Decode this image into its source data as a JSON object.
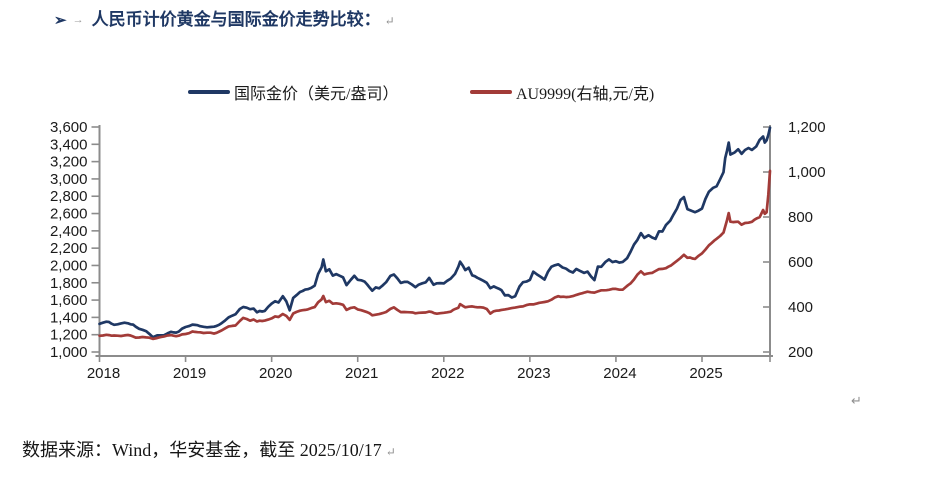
{
  "page": {
    "title_bullet": "➢",
    "tab_mark": "→",
    "title": "人民币计价黄金与国际金价走势比较：",
    "paragraph_mark": "↵",
    "footer": "数据来源：Wind，华安基金，截至 2025/10/17"
  },
  "colors": {
    "navy": "#1F3864",
    "dark_red": "#A23B38",
    "axis_gray": "#8C8C8C",
    "tick_text": "#1b1b1b"
  },
  "chart_data": {
    "type": "line",
    "title": "人民币计价黄金与国际金价走势比较",
    "legend_position": "top",
    "grid": false,
    "x_axis": {
      "tick_labels": [
        "2018",
        "2019",
        "2020",
        "2021",
        "2022",
        "2023",
        "2024",
        "2025"
      ],
      "start": 2018,
      "end": 2025.79
    },
    "left_axis": {
      "min": 1000,
      "max": 3600,
      "step": 200,
      "applies_to": "国际金价（美元/盎司）"
    },
    "right_axis": {
      "min": 200,
      "max": 1200,
      "step": 200,
      "applies_to": "AU9999(右轴,元/克)"
    },
    "series": [
      {
        "name": "国际金价（美元/盎司）",
        "axis": "left",
        "color": "#1F3864",
        "points": [
          [
            2018.0,
            1318
          ],
          [
            2018.08,
            1342
          ],
          [
            2018.17,
            1326
          ],
          [
            2018.25,
            1332
          ],
          [
            2018.33,
            1340
          ],
          [
            2018.42,
            1298
          ],
          [
            2018.5,
            1252
          ],
          [
            2018.58,
            1212
          ],
          [
            2018.62,
            1178
          ],
          [
            2018.67,
            1196
          ],
          [
            2018.75,
            1203
          ],
          [
            2018.83,
            1222
          ],
          [
            2018.92,
            1233
          ],
          [
            2019.0,
            1284
          ],
          [
            2019.08,
            1322
          ],
          [
            2019.17,
            1300
          ],
          [
            2019.25,
            1288
          ],
          [
            2019.33,
            1282
          ],
          [
            2019.42,
            1330
          ],
          [
            2019.5,
            1412
          ],
          [
            2019.58,
            1428
          ],
          [
            2019.63,
            1500
          ],
          [
            2019.67,
            1528
          ],
          [
            2019.75,
            1488
          ],
          [
            2019.79,
            1508
          ],
          [
            2019.83,
            1462
          ],
          [
            2019.92,
            1478
          ],
          [
            2020.0,
            1552
          ],
          [
            2020.04,
            1582
          ],
          [
            2020.08,
            1570
          ],
          [
            2020.13,
            1645
          ],
          [
            2020.17,
            1590
          ],
          [
            2020.21,
            1480
          ],
          [
            2020.25,
            1625
          ],
          [
            2020.33,
            1700
          ],
          [
            2020.42,
            1728
          ],
          [
            2020.5,
            1775
          ],
          [
            2020.54,
            1905
          ],
          [
            2020.58,
            1975
          ],
          [
            2020.6,
            2065
          ],
          [
            2020.63,
            1935
          ],
          [
            2020.67,
            1955
          ],
          [
            2020.71,
            1885
          ],
          [
            2020.75,
            1900
          ],
          [
            2020.83,
            1863
          ],
          [
            2020.87,
            1778
          ],
          [
            2020.92,
            1843
          ],
          [
            2020.96,
            1893
          ],
          [
            2021.0,
            1848
          ],
          [
            2021.08,
            1808
          ],
          [
            2021.17,
            1712
          ],
          [
            2021.21,
            1742
          ],
          [
            2021.25,
            1732
          ],
          [
            2021.33,
            1792
          ],
          [
            2021.38,
            1872
          ],
          [
            2021.42,
            1898
          ],
          [
            2021.46,
            1858
          ],
          [
            2021.5,
            1802
          ],
          [
            2021.54,
            1812
          ],
          [
            2021.58,
            1816
          ],
          [
            2021.63,
            1788
          ],
          [
            2021.67,
            1752
          ],
          [
            2021.71,
            1772
          ],
          [
            2021.75,
            1782
          ],
          [
            2021.79,
            1802
          ],
          [
            2021.83,
            1863
          ],
          [
            2021.88,
            1782
          ],
          [
            2021.92,
            1792
          ],
          [
            2022.0,
            1800
          ],
          [
            2022.08,
            1856
          ],
          [
            2022.13,
            1910
          ],
          [
            2022.17,
            1988
          ],
          [
            2022.19,
            2042
          ],
          [
            2022.25,
            1942
          ],
          [
            2022.29,
            1978
          ],
          [
            2022.33,
            1892
          ],
          [
            2022.42,
            1842
          ],
          [
            2022.5,
            1806
          ],
          [
            2022.54,
            1736
          ],
          [
            2022.58,
            1766
          ],
          [
            2022.67,
            1722
          ],
          [
            2022.71,
            1662
          ],
          [
            2022.75,
            1666
          ],
          [
            2022.79,
            1632
          ],
          [
            2022.83,
            1646
          ],
          [
            2022.88,
            1752
          ],
          [
            2022.92,
            1796
          ],
          [
            2023.0,
            1832
          ],
          [
            2023.04,
            1922
          ],
          [
            2023.08,
            1902
          ],
          [
            2023.13,
            1866
          ],
          [
            2023.17,
            1832
          ],
          [
            2023.21,
            1922
          ],
          [
            2023.25,
            1982
          ],
          [
            2023.29,
            2002
          ],
          [
            2023.33,
            2016
          ],
          [
            2023.38,
            1976
          ],
          [
            2023.42,
            1962
          ],
          [
            2023.46,
            1932
          ],
          [
            2023.5,
            1922
          ],
          [
            2023.54,
            1962
          ],
          [
            2023.58,
            1936
          ],
          [
            2023.63,
            1916
          ],
          [
            2023.67,
            1926
          ],
          [
            2023.71,
            1872
          ],
          [
            2023.75,
            1832
          ],
          [
            2023.79,
            1986
          ],
          [
            2023.83,
            1982
          ],
          [
            2023.88,
            2042
          ],
          [
            2023.92,
            2066
          ],
          [
            2023.96,
            2042
          ],
          [
            2024.0,
            2056
          ],
          [
            2024.04,
            2032
          ],
          [
            2024.08,
            2036
          ],
          [
            2024.13,
            2086
          ],
          [
            2024.17,
            2162
          ],
          [
            2024.21,
            2242
          ],
          [
            2024.25,
            2302
          ],
          [
            2024.29,
            2382
          ],
          [
            2024.33,
            2332
          ],
          [
            2024.38,
            2352
          ],
          [
            2024.42,
            2322
          ],
          [
            2024.46,
            2302
          ],
          [
            2024.5,
            2392
          ],
          [
            2024.54,
            2402
          ],
          [
            2024.58,
            2472
          ],
          [
            2024.63,
            2512
          ],
          [
            2024.67,
            2582
          ],
          [
            2024.71,
            2652
          ],
          [
            2024.75,
            2742
          ],
          [
            2024.79,
            2782
          ],
          [
            2024.83,
            2652
          ],
          [
            2024.88,
            2632
          ],
          [
            2024.92,
            2622
          ],
          [
            2025.0,
            2652
          ],
          [
            2025.04,
            2762
          ],
          [
            2025.08,
            2852
          ],
          [
            2025.13,
            2902
          ],
          [
            2025.17,
            2922
          ],
          [
            2025.21,
            3002
          ],
          [
            2025.25,
            3082
          ],
          [
            2025.27,
            3242
          ],
          [
            2025.29,
            3322
          ],
          [
            2025.31,
            3422
          ],
          [
            2025.33,
            3282
          ],
          [
            2025.38,
            3312
          ],
          [
            2025.42,
            3352
          ],
          [
            2025.46,
            3292
          ],
          [
            2025.5,
            3332
          ],
          [
            2025.54,
            3362
          ],
          [
            2025.58,
            3342
          ],
          [
            2025.63,
            3372
          ],
          [
            2025.67,
            3442
          ],
          [
            2025.71,
            3482
          ],
          [
            2025.73,
            3422
          ],
          [
            2025.75,
            3452
          ],
          [
            2025.77,
            3502
          ],
          [
            2025.79,
            3592
          ]
        ]
      },
      {
        "name": "AU9999(右轴,元/克)",
        "axis": "right",
        "color": "#A23B38",
        "points": [
          [
            2018.0,
            272
          ],
          [
            2018.08,
            274
          ],
          [
            2018.17,
            271
          ],
          [
            2018.25,
            270
          ],
          [
            2018.33,
            271
          ],
          [
            2018.42,
            266
          ],
          [
            2018.5,
            264
          ],
          [
            2018.58,
            262
          ],
          [
            2018.62,
            258
          ],
          [
            2018.67,
            263
          ],
          [
            2018.75,
            268
          ],
          [
            2018.83,
            272
          ],
          [
            2018.92,
            274
          ],
          [
            2019.0,
            282
          ],
          [
            2019.08,
            288
          ],
          [
            2019.17,
            285
          ],
          [
            2019.25,
            283
          ],
          [
            2019.33,
            283
          ],
          [
            2019.42,
            295
          ],
          [
            2019.5,
            312
          ],
          [
            2019.58,
            318
          ],
          [
            2019.63,
            340
          ],
          [
            2019.67,
            352
          ],
          [
            2019.75,
            342
          ],
          [
            2019.79,
            348
          ],
          [
            2019.83,
            336
          ],
          [
            2019.92,
            340
          ],
          [
            2020.0,
            352
          ],
          [
            2020.04,
            358
          ],
          [
            2020.08,
            356
          ],
          [
            2020.13,
            370
          ],
          [
            2020.17,
            362
          ],
          [
            2020.21,
            345
          ],
          [
            2020.25,
            372
          ],
          [
            2020.33,
            385
          ],
          [
            2020.42,
            390
          ],
          [
            2020.5,
            398
          ],
          [
            2020.54,
            420
          ],
          [
            2020.58,
            435
          ],
          [
            2020.6,
            452
          ],
          [
            2020.63,
            425
          ],
          [
            2020.67,
            428
          ],
          [
            2020.71,
            415
          ],
          [
            2020.75,
            418
          ],
          [
            2020.83,
            408
          ],
          [
            2020.87,
            390
          ],
          [
            2020.92,
            398
          ],
          [
            2020.96,
            400
          ],
          [
            2021.0,
            392
          ],
          [
            2021.08,
            380
          ],
          [
            2021.17,
            366
          ],
          [
            2021.25,
            368
          ],
          [
            2021.33,
            378
          ],
          [
            2021.38,
            390
          ],
          [
            2021.42,
            395
          ],
          [
            2021.5,
            378
          ],
          [
            2021.58,
            380
          ],
          [
            2021.67,
            372
          ],
          [
            2021.75,
            372
          ],
          [
            2021.83,
            378
          ],
          [
            2021.92,
            372
          ],
          [
            2022.0,
            374
          ],
          [
            2022.08,
            382
          ],
          [
            2022.17,
            398
          ],
          [
            2022.19,
            412
          ],
          [
            2022.25,
            400
          ],
          [
            2022.33,
            402
          ],
          [
            2022.42,
            398
          ],
          [
            2022.5,
            392
          ],
          [
            2022.54,
            374
          ],
          [
            2022.58,
            382
          ],
          [
            2022.67,
            388
          ],
          [
            2022.75,
            390
          ],
          [
            2022.83,
            398
          ],
          [
            2022.92,
            404
          ],
          [
            2023.0,
            410
          ],
          [
            2023.08,
            414
          ],
          [
            2023.17,
            425
          ],
          [
            2023.25,
            434
          ],
          [
            2023.33,
            448
          ],
          [
            2023.42,
            445
          ],
          [
            2023.5,
            450
          ],
          [
            2023.58,
            460
          ],
          [
            2023.67,
            470
          ],
          [
            2023.75,
            465
          ],
          [
            2023.83,
            475
          ],
          [
            2023.92,
            478
          ],
          [
            2024.0,
            480
          ],
          [
            2024.08,
            478
          ],
          [
            2024.17,
            505
          ],
          [
            2024.25,
            545
          ],
          [
            2024.29,
            560
          ],
          [
            2024.33,
            548
          ],
          [
            2024.42,
            552
          ],
          [
            2024.5,
            568
          ],
          [
            2024.58,
            572
          ],
          [
            2024.67,
            592
          ],
          [
            2024.75,
            618
          ],
          [
            2024.79,
            632
          ],
          [
            2024.83,
            618
          ],
          [
            2024.92,
            616
          ],
          [
            2025.0,
            638
          ],
          [
            2025.08,
            675
          ],
          [
            2025.17,
            700
          ],
          [
            2025.25,
            730
          ],
          [
            2025.29,
            785
          ],
          [
            2025.31,
            818
          ],
          [
            2025.33,
            780
          ],
          [
            2025.42,
            778
          ],
          [
            2025.46,
            765
          ],
          [
            2025.5,
            775
          ],
          [
            2025.58,
            780
          ],
          [
            2025.67,
            800
          ],
          [
            2025.71,
            830
          ],
          [
            2025.73,
            812
          ],
          [
            2025.75,
            820
          ],
          [
            2025.77,
            900
          ],
          [
            2025.79,
            1005
          ]
        ]
      }
    ]
  }
}
